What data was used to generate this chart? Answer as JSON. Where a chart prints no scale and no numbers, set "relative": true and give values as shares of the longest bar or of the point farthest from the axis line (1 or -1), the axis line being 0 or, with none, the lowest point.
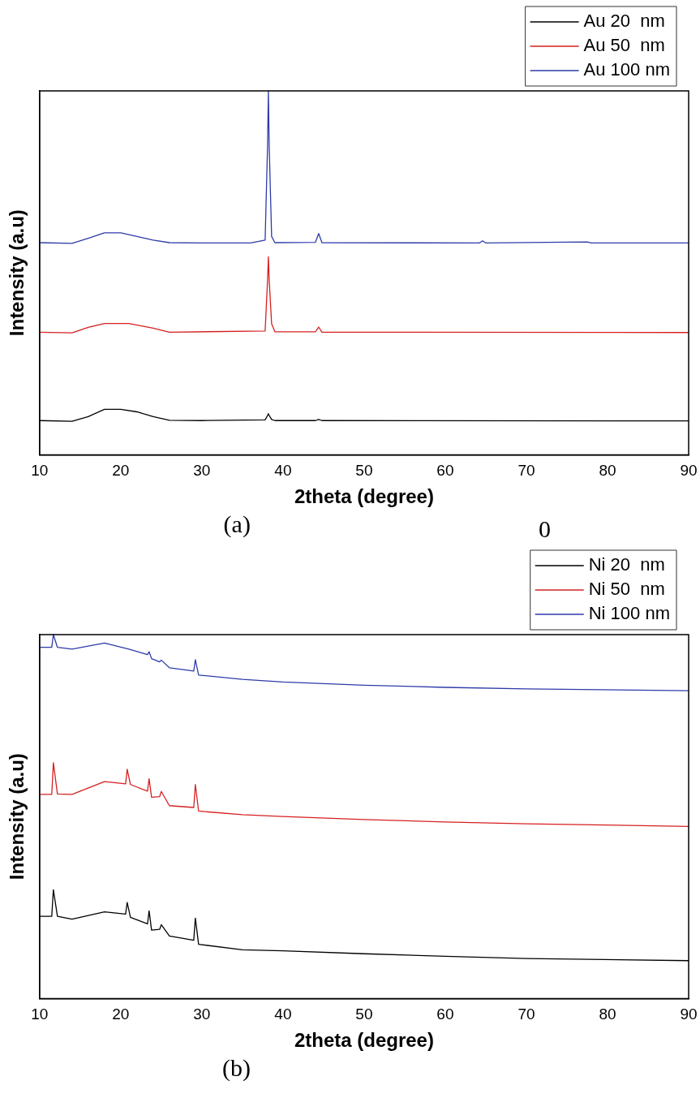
{
  "chart_data": [
    {
      "type": "line",
      "relative": true,
      "xlabel": "2theta (degree)",
      "ylabel": "Intensity (a.u)",
      "annotations": [
        "(a)",
        "0"
      ],
      "xlim": [
        10,
        90
      ],
      "xticks": [
        10,
        20,
        30,
        40,
        50,
        60,
        70,
        80,
        90
      ],
      "legend": "top right",
      "grid": false,
      "series": [
        {
          "name": "Au 20  nm",
          "color": "#000000",
          "x": [
            10,
            14,
            16,
            18,
            20,
            22,
            24,
            26,
            30,
            37.8,
            38.1,
            38.2,
            38.3,
            38.6,
            39,
            44,
            44.4,
            44.8,
            90
          ],
          "values": [
            0.094,
            0.092,
            0.105,
            0.125,
            0.125,
            0.118,
            0.105,
            0.095,
            0.094,
            0.096,
            0.108,
            0.113,
            0.108,
            0.097,
            0.094,
            0.094,
            0.097,
            0.094,
            0.093
          ]
        },
        {
          "name": "Au 50  nm",
          "color": "#d62020",
          "x": [
            10,
            14,
            16,
            18,
            21,
            24,
            26,
            37.8,
            38.1,
            38.2,
            38.3,
            38.6,
            39,
            44,
            44.4,
            44.8,
            90
          ],
          "values": [
            0.337,
            0.335,
            0.35,
            0.361,
            0.361,
            0.348,
            0.337,
            0.34,
            0.48,
            0.544,
            0.48,
            0.36,
            0.338,
            0.338,
            0.351,
            0.337,
            0.336
          ]
        },
        {
          "name": "Au 100 nm",
          "color": "#2e3ba8",
          "x": [
            10,
            14,
            16,
            18,
            20,
            22,
            24,
            26,
            30,
            36,
            37.8,
            38.1,
            38.2,
            38.3,
            38.6,
            39,
            44,
            44.4,
            44.8,
            64.2,
            64.6,
            65,
            77.5,
            78,
            90
          ],
          "values": [
            0.583,
            0.581,
            0.595,
            0.61,
            0.61,
            0.6,
            0.59,
            0.583,
            0.582,
            0.582,
            0.59,
            0.85,
            1,
            0.85,
            0.6,
            0.583,
            0.584,
            0.608,
            0.583,
            0.582,
            0.588,
            0.582,
            0.585,
            0.582,
            0.582
          ]
        }
      ]
    },
    {
      "type": "line",
      "relative": true,
      "xlabel": "2theta (degree)",
      "ylabel": "Intensity (a.u)",
      "annotations": [
        "(b)"
      ],
      "xlim": [
        10,
        90
      ],
      "xticks": [
        10,
        20,
        30,
        40,
        50,
        60,
        70,
        80,
        90
      ],
      "legend": "top right",
      "grid": false,
      "series": [
        {
          "name": "Ni 20  nm",
          "color": "#000000",
          "x": [
            10,
            11.5,
            11.7,
            12.2,
            14,
            18,
            20.6,
            20.8,
            21.2,
            23.3,
            23.5,
            23.8,
            24.8,
            25,
            26,
            29,
            29.2,
            29.6,
            35,
            40,
            50,
            60,
            70,
            90
          ],
          "values": [
            0.226,
            0.226,
            0.299,
            0.226,
            0.218,
            0.238,
            0.232,
            0.264,
            0.223,
            0.205,
            0.241,
            0.188,
            0.19,
            0.203,
            0.172,
            0.16,
            0.221,
            0.149,
            0.134,
            0.131,
            0.123,
            0.116,
            0.11,
            0.104
          ]
        },
        {
          "name": "Ni 50  nm",
          "color": "#d62020",
          "x": [
            10,
            11.5,
            11.7,
            12.2,
            14,
            18,
            20.6,
            20.8,
            21.2,
            23.3,
            23.5,
            23.8,
            24.8,
            25,
            26,
            29,
            29.2,
            29.6,
            35,
            40,
            50,
            60,
            70,
            90
          ],
          "values": [
            0.561,
            0.561,
            0.648,
            0.562,
            0.561,
            0.596,
            0.59,
            0.63,
            0.588,
            0.57,
            0.604,
            0.553,
            0.555,
            0.569,
            0.53,
            0.525,
            0.588,
            0.515,
            0.505,
            0.5,
            0.492,
            0.485,
            0.48,
            0.473
          ]
        },
        {
          "name": "Ni 100 nm",
          "color": "#2e3ba8",
          "x": [
            10,
            11.5,
            11.7,
            12.2,
            14,
            18,
            21,
            23.3,
            23.5,
            23.8,
            24.8,
            25,
            26,
            29,
            29.2,
            29.6,
            35,
            40,
            50,
            60,
            70,
            90
          ],
          "values": [
            0.965,
            0.965,
            1,
            0.965,
            0.96,
            0.977,
            0.96,
            0.945,
            0.953,
            0.934,
            0.925,
            0.93,
            0.909,
            0.9,
            0.931,
            0.889,
            0.877,
            0.87,
            0.861,
            0.855,
            0.851,
            0.846
          ]
        }
      ]
    }
  ]
}
